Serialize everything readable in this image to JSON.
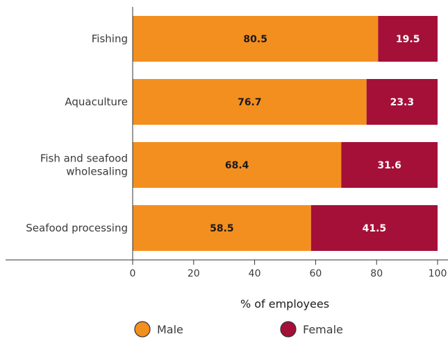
{
  "chart_data": {
    "type": "bar",
    "orientation": "horizontal",
    "stacked": true,
    "categories": [
      "Fishing",
      "Aquaculture",
      "Fish and seafood wholesaling",
      "Seafood processing"
    ],
    "category_lines": [
      [
        "Fishing"
      ],
      [
        "Aquaculture"
      ],
      [
        "Fish and seafood",
        "wholesaling"
      ],
      [
        "Seafood processing"
      ]
    ],
    "series": [
      {
        "name": "Male",
        "values": [
          80.5,
          76.7,
          68.4,
          58.5
        ],
        "labels": [
          "80.5",
          "76.7",
          "68.4",
          "58.5"
        ],
        "color": "#f38f1f",
        "label_color": "#1a1a1a"
      },
      {
        "name": "Female",
        "values": [
          19.5,
          23.3,
          31.6,
          41.5
        ],
        "labels": [
          "19.5",
          "23.3",
          "31.6",
          "41.5"
        ],
        "color": "#a41038",
        "label_color": "#ffffff"
      }
    ],
    "xlabel": "% of employees",
    "xlim": [
      0,
      100
    ],
    "xticks": [
      0,
      20,
      40,
      60,
      80,
      100
    ],
    "grid": false,
    "legend_position": "bottom"
  }
}
